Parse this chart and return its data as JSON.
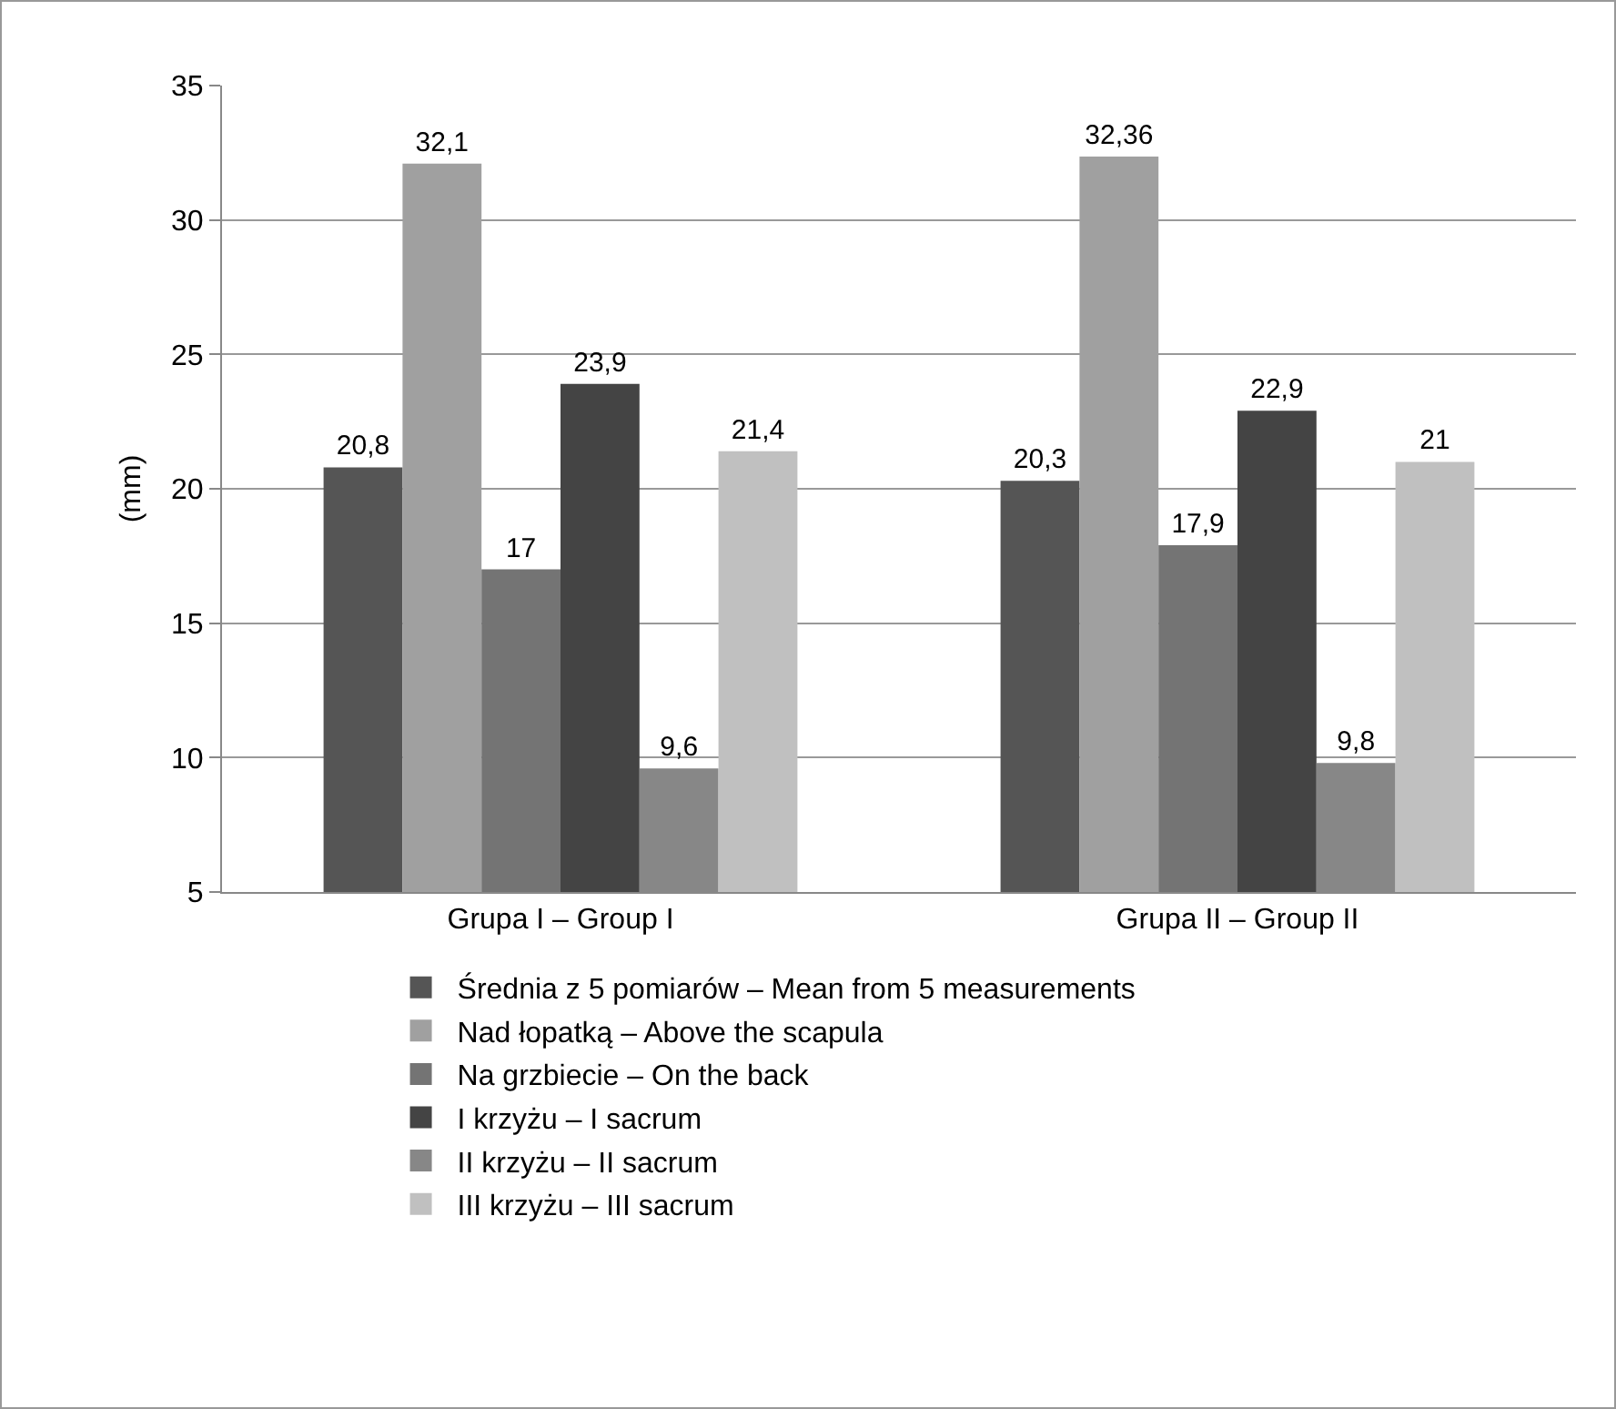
{
  "chart_data": {
    "type": "bar",
    "ylabel": "(mm)",
    "categories": [
      "Grupa I – Group I",
      "Grupa II – Group II"
    ],
    "series": [
      {
        "name": "Średnia z 5 pomiarów – Mean from 5 measurements",
        "color": "#555555",
        "values": [
          20.8,
          20.3
        ],
        "value_labels": [
          "20,8",
          "20,3"
        ]
      },
      {
        "name": "Nad łopatką – Above the scapula",
        "color": "#a0a0a0",
        "values": [
          32.1,
          32.36
        ],
        "value_labels": [
          "32,1",
          "32,36"
        ]
      },
      {
        "name": "Na grzbiecie – On the back",
        "color": "#747474",
        "values": [
          17,
          17.9
        ],
        "value_labels": [
          "17",
          "17,9"
        ]
      },
      {
        "name": "I krzyżu – I sacrum",
        "color": "#444444",
        "values": [
          23.9,
          22.9
        ],
        "value_labels": [
          "23,9",
          "22,9"
        ]
      },
      {
        "name": "II krzyżu – II sacrum",
        "color": "#878787",
        "values": [
          9.6,
          9.8
        ],
        "value_labels": [
          "9,6",
          "9,8"
        ]
      },
      {
        "name": "III krzyżu – III sacrum",
        "color": "#c0c0c0",
        "values": [
          21.4,
          21
        ],
        "value_labels": [
          "21,4",
          "21"
        ]
      }
    ],
    "ylim": [
      5,
      35
    ],
    "yticks": [
      5,
      10,
      15,
      20,
      25,
      30,
      35
    ],
    "grid": "y",
    "legend": "bottom"
  }
}
